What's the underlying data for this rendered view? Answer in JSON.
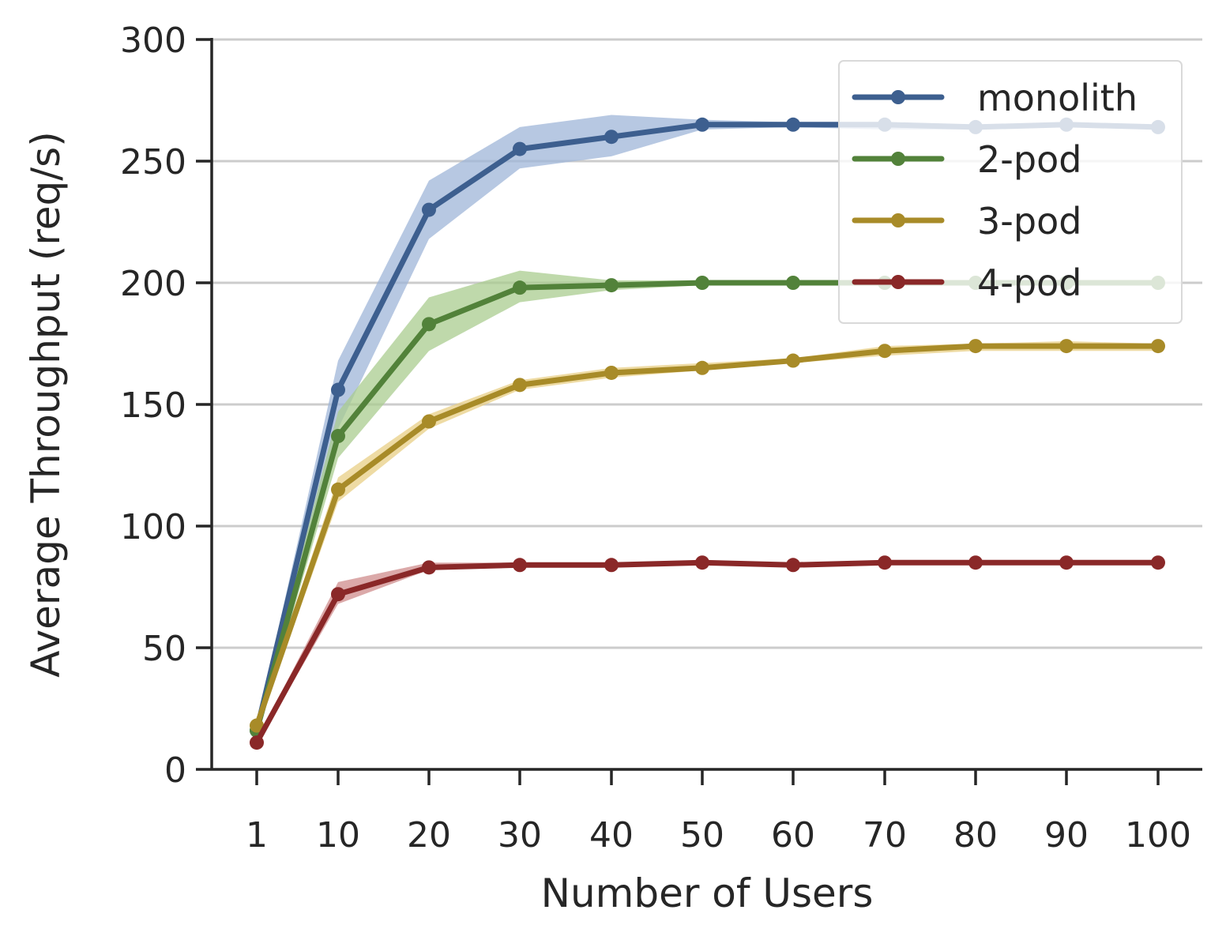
{
  "chart_data": {
    "type": "line",
    "title": "",
    "xlabel": "Number of Users",
    "ylabel": "Average Throughput (req/s)",
    "categories": [
      "1",
      "10",
      "20",
      "30",
      "40",
      "50",
      "60",
      "70",
      "80",
      "90",
      "100"
    ],
    "ylim": [
      0,
      300
    ],
    "yticks": [
      0,
      50,
      100,
      150,
      200,
      250,
      300
    ],
    "grid": "horizontal",
    "legend_position": "top-right",
    "series": [
      {
        "name": "monolith",
        "color": "#3d5f8f",
        "band_color": "#9fb5d8",
        "values": [
          16,
          156,
          230,
          255,
          260,
          265,
          265,
          265,
          264,
          265,
          264
        ],
        "lower": [
          14,
          140,
          218,
          247,
          252,
          263,
          264,
          263,
          263,
          264,
          263
        ],
        "upper": [
          18,
          168,
          242,
          264,
          269,
          267,
          266,
          266,
          265,
          266,
          265
        ]
      },
      {
        "name": "2-pod",
        "color": "#52823a",
        "band_color": "#a9cc8f",
        "values": [
          16,
          137,
          183,
          198,
          199,
          200,
          200,
          200,
          200,
          200,
          200
        ],
        "lower": [
          14,
          128,
          172,
          192,
          197,
          199,
          199,
          199,
          199,
          199,
          199
        ],
        "upper": [
          18,
          147,
          194,
          205,
          201,
          201,
          201,
          201,
          201,
          201,
          201
        ]
      },
      {
        "name": "3-pod",
        "color": "#a88b28",
        "band_color": "#e8cf85",
        "values": [
          18,
          115,
          143,
          158,
          163,
          165,
          168,
          172,
          174,
          174,
          174
        ],
        "lower": [
          16,
          110,
          140,
          156,
          161,
          164,
          167,
          170,
          172,
          172,
          172
        ],
        "upper": [
          20,
          120,
          146,
          160,
          165,
          167,
          169,
          174,
          175,
          176,
          175
        ]
      },
      {
        "name": "4-pod",
        "color": "#8a2828",
        "band_color": "#cf8c8c",
        "values": [
          11,
          72,
          83,
          84,
          84,
          85,
          84,
          85,
          85,
          85,
          85
        ],
        "lower": [
          10,
          68,
          82,
          83,
          83,
          84,
          83,
          84,
          84,
          84,
          84
        ],
        "upper": [
          12,
          77,
          85,
          85,
          85,
          86,
          85,
          86,
          86,
          86,
          86
        ]
      }
    ]
  }
}
